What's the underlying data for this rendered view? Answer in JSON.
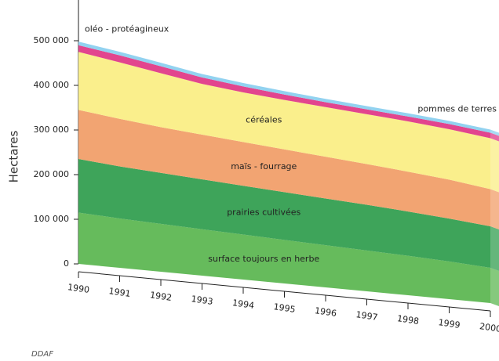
{
  "chart_data": {
    "type": "stacked-area",
    "y_label": "Hectares",
    "source": "DDAF",
    "x": [
      1990,
      1991,
      1992,
      1993,
      1994,
      1995,
      1996,
      1997,
      1998,
      1999,
      2000
    ],
    "xticks": [
      1990,
      1991,
      1992,
      1993,
      1994,
      1995,
      1996,
      1997,
      1998,
      1999,
      2000
    ],
    "xlim": [
      1990,
      2000
    ],
    "ylim": [
      0,
      600000
    ],
    "yticks": [
      0,
      {
        "value": 100000,
        "label": "100 000"
      },
      {
        "value": 200000,
        "label": "200 000"
      },
      {
        "value": 300000,
        "label": "300 000"
      },
      {
        "value": 400000,
        "label": "400 000"
      },
      {
        "value": 500000,
        "label": "500 000"
      }
    ],
    "series": [
      {
        "name": "surface toujours en herbe",
        "color": "#66bb5c",
        "values": [
          115000,
          112000,
          110000,
          108000,
          106000,
          104000,
          102000,
          100000,
          98000,
          95000,
          90000
        ]
      },
      {
        "name": "prairies cultivées",
        "color": "#3ea45a",
        "values": [
          120000,
          118000,
          117000,
          116000,
          115000,
          114000,
          113000,
          112000,
          110000,
          108000,
          106000
        ]
      },
      {
        "name": "maïs - fourrage",
        "color": "#f2a472",
        "values": [
          110000,
          108000,
          105000,
          104000,
          103000,
          102000,
          101000,
          100000,
          99000,
          98000,
          95000
        ]
      },
      {
        "name": "céréales",
        "color": "#faef8c",
        "values": [
          130000,
          128000,
          124000,
          118000,
          117000,
          118000,
          120000,
          122000,
          125000,
          127000,
          130000
        ]
      },
      {
        "name": "oléo - protéagineux",
        "color": "#e2458e",
        "values": [
          15000,
          16000,
          16000,
          15000,
          14000,
          13000,
          12000,
          12000,
          12000,
          13000,
          14000
        ]
      },
      {
        "name": "pommes de terres",
        "color": "#92d2f0",
        "values": [
          8000,
          8000,
          8000,
          8000,
          8000,
          8000,
          8000,
          8000,
          8000,
          8000,
          8000
        ]
      }
    ]
  }
}
